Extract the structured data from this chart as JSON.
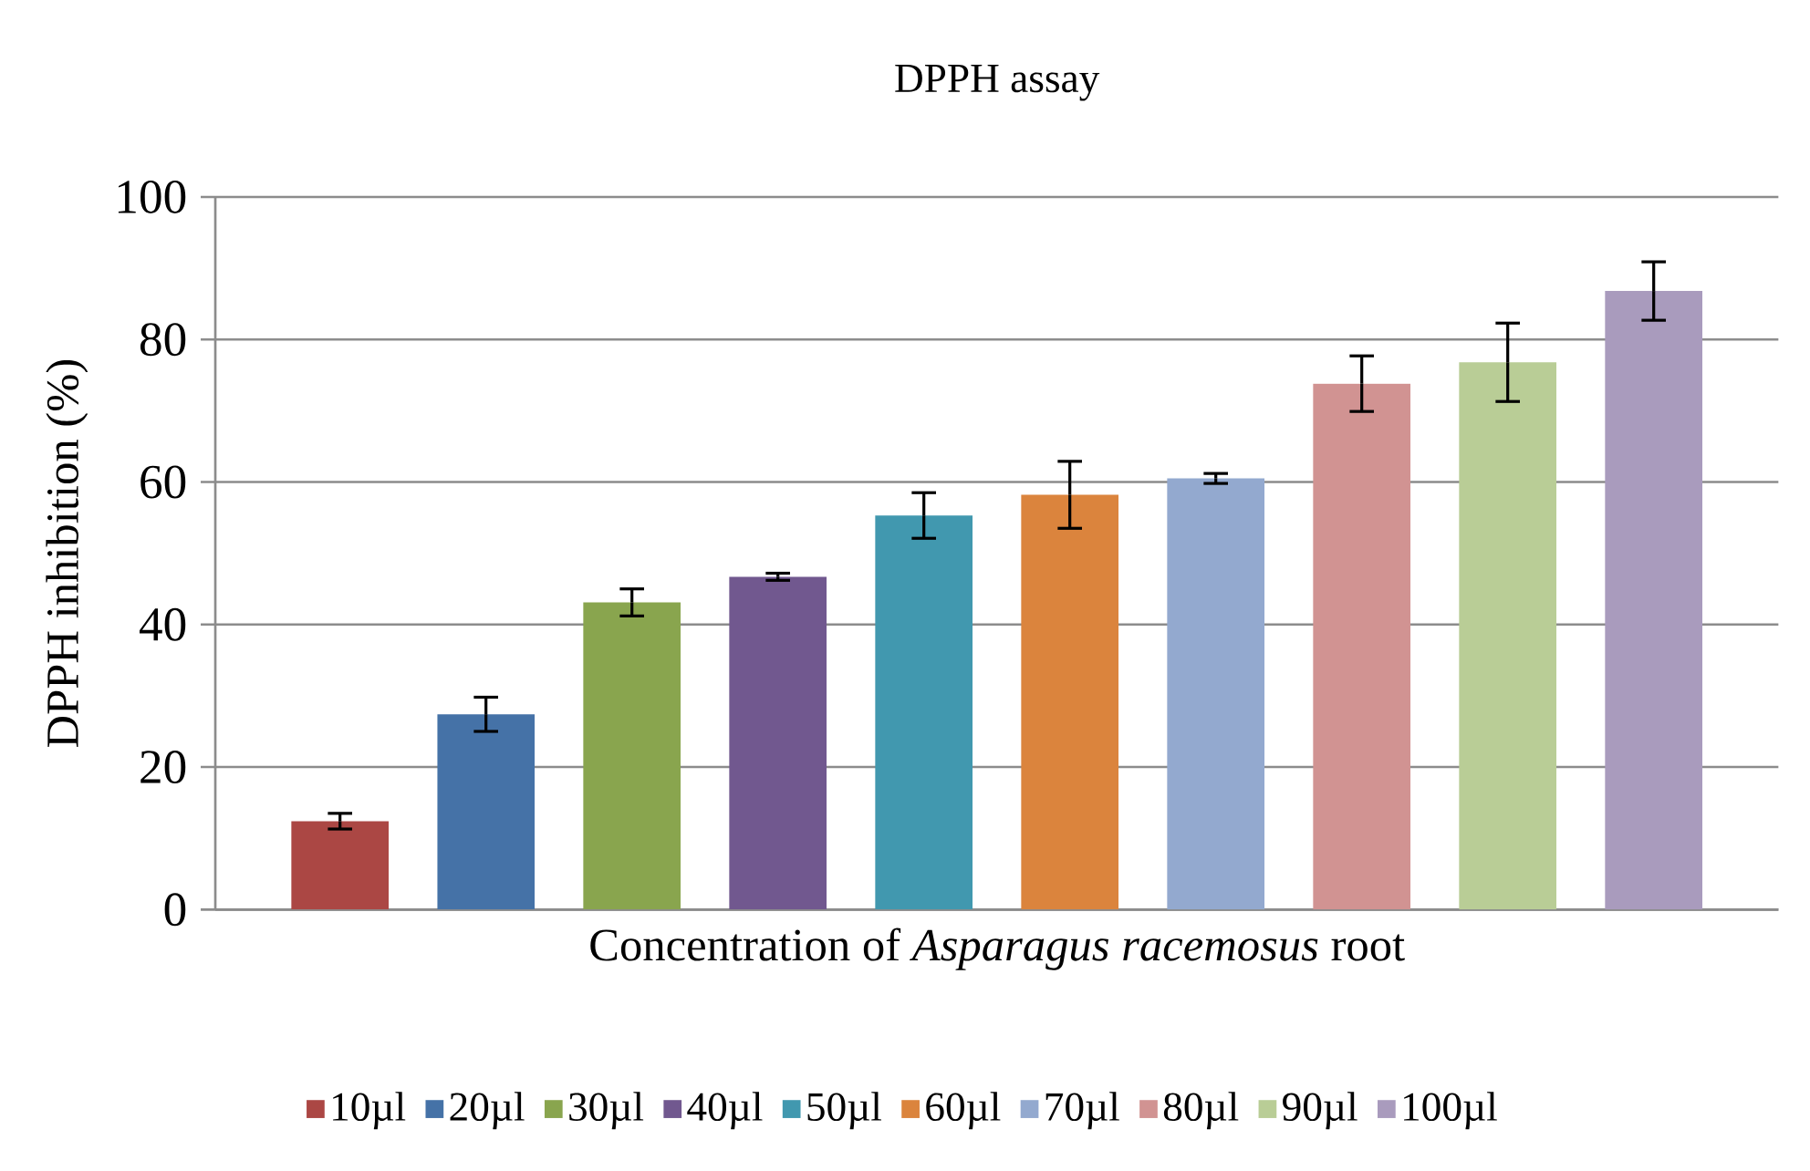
{
  "chart_data": {
    "type": "bar",
    "title": "DPPH assay",
    "xlabel": "Concentration of *Asparagus racemosus* root",
    "ylabel": "DPPH inhibition (%)",
    "categories": [
      null
    ],
    "series": [
      {
        "name": "10µl",
        "color": "#ab4744",
        "values": [
          12.4
        ],
        "errors": [
          1.1
        ]
      },
      {
        "name": "20µl",
        "color": "#4572a7",
        "values": [
          27.4
        ],
        "errors": [
          2.4
        ]
      },
      {
        "name": "30µl",
        "color": "#89a54e",
        "values": [
          43.1
        ],
        "errors": [
          1.9
        ]
      },
      {
        "name": "40µl",
        "color": "#71588f",
        "values": [
          46.7
        ],
        "errors": [
          0.5
        ]
      },
      {
        "name": "50µl",
        "color": "#4198af",
        "values": [
          55.3
        ],
        "errors": [
          3.2
        ]
      },
      {
        "name": "60µl",
        "color": "#db843d",
        "values": [
          58.2
        ],
        "errors": [
          4.7
        ]
      },
      {
        "name": "70µl",
        "color": "#93a9cf",
        "values": [
          60.5
        ],
        "errors": [
          0.7
        ]
      },
      {
        "name": "80µl",
        "color": "#d19392",
        "values": [
          73.8
        ],
        "errors": [
          3.9
        ]
      },
      {
        "name": "90µl",
        "color": "#b9cd96",
        "values": [
          76.8
        ],
        "errors": [
          5.5
        ]
      },
      {
        "name": "100µl",
        "color": "#a99bbd",
        "values": [
          86.8
        ],
        "errors": [
          4.1
        ]
      }
    ],
    "ylim": [
      0,
      100
    ],
    "yticks": [
      0,
      20,
      40,
      60,
      80,
      100
    ],
    "grid": "y",
    "legend": "bottom"
  }
}
